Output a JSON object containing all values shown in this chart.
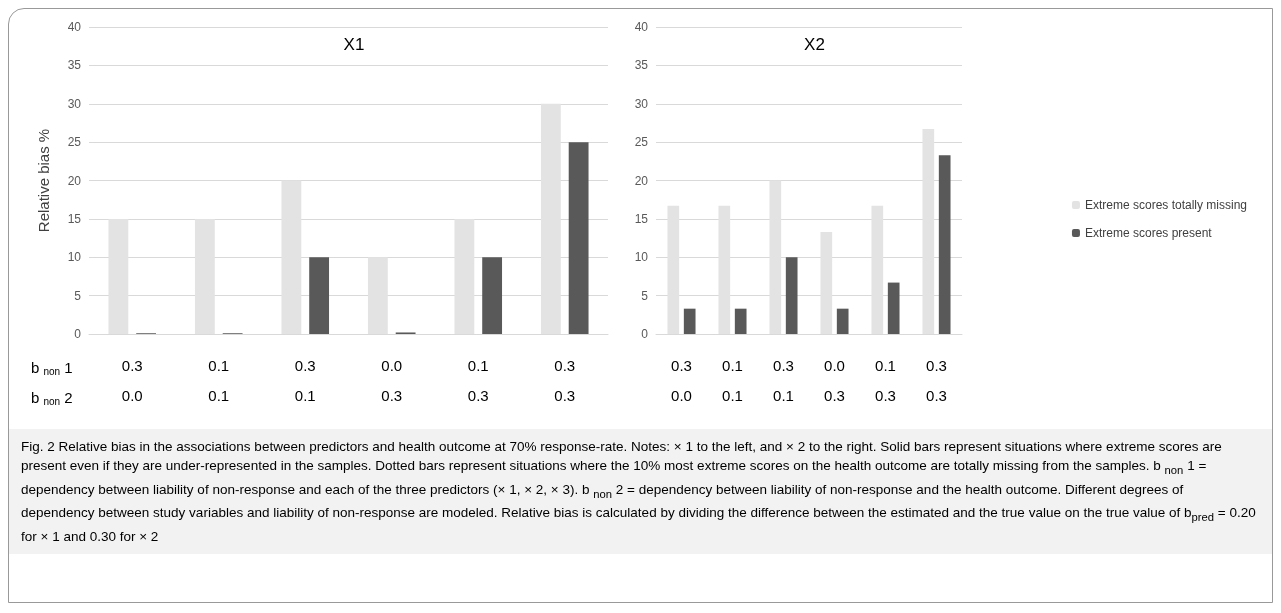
{
  "chart_data": [
    {
      "type": "bar",
      "title": "X1",
      "ylabel": "Relative bias %",
      "categories": [
        "0.3\n0.0",
        "0.1\n0.1",
        "0.3\n0.1",
        "0.0\n0.3",
        "0.1\n0.3",
        "0.3\n0.3"
      ],
      "series": [
        {
          "color": "#e3e3e3",
          "values": [
            15,
            15,
            20,
            10,
            15,
            30
          ]
        },
        {
          "color": "#595959",
          "values": [
            0.1,
            0.1,
            10,
            0.2,
            10,
            25
          ]
        }
      ],
      "ylim": [
        0,
        40
      ],
      "yticks": [
        0,
        5,
        10,
        15,
        20,
        25,
        30,
        35,
        40
      ],
      "grid": "y",
      "legend": false,
      "annotations": [
        "b $_{non}$ 1",
        "b $_{non}$ 2",
        "Fig. 2 Relative bias in the associations between predictors and health outcome at 70% response-rate. Notes: × 1 to the left, and × 2 to the right. Solid bars represent situations where extreme scores are present even if they are under-represented in the samples. Dotted bars represent situations where the 10% most extreme scores on the health outcome are totally missing from the samples. b $_{non}$ 1 = dependency between liability of non-response and each of the three predictors (× 1, × 2, × 3). b $_{non}$ 2 = dependency between liability of non-response and the health outcome. Different degrees of dependency between study variables and liability of non-response are modeled. Relative bias is calculated by dividing the difference between the estimated and the true value on the true value of b$_{pred}$ = 0.20 for × 1 and 0.30 for × 2"
      ]
    },
    {
      "type": "bar",
      "title": "X2",
      "categories": [
        "0.3\n0.0",
        "0.1\n0.1",
        "0.3\n0.1",
        "0.0\n0.3",
        "0.1\n0.3",
        "0.3\n0.3"
      ],
      "series": [
        {
          "name": "Extreme scores totally missing",
          "color": "#e3e3e3",
          "values": [
            16.7,
            16.7,
            20,
            13.3,
            16.7,
            26.7
          ]
        },
        {
          "name": "Extreme scores present",
          "color": "#595959",
          "values": [
            3.3,
            3.3,
            10,
            3.3,
            6.7,
            23.3
          ]
        }
      ],
      "ylim": [
        0,
        40
      ],
      "yticks": [
        0,
        5,
        10,
        15,
        20,
        25,
        30,
        35,
        40
      ],
      "grid": "y",
      "legend": "right"
    }
  ]
}
